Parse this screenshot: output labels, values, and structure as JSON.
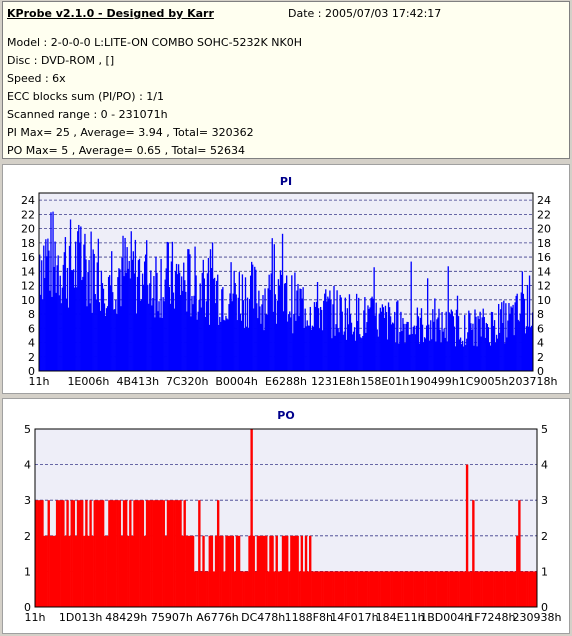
{
  "header": {
    "title": "KProbe v2.1.0 - Designed by Karr",
    "date": "Date : 2005/07/03 17:42:17",
    "lines": [
      "Model : 2-0-0-0 L:LITE-ON COMBO SOHC-5232K NK0H",
      "Disc : DVD-ROM ,  []",
      "Speed : 6x",
      "ECC blocks sum (PI/PO) : 1/1",
      "Scanned range : 0 - 231071h",
      "PI Max= 25 , Average= 3.94 , Total= 320362",
      "PO Max= 5 , Average= 0.65 , Total= 52634"
    ]
  },
  "colors": {
    "pi": "#0000ff",
    "po": "#ff0000",
    "title": "#00008b",
    "plot_bg": "#eeeef8",
    "grid": "#3a3a8a"
  },
  "chart_data": [
    {
      "type": "area",
      "title": "PI",
      "ylim": [
        0,
        25
      ],
      "y_ticks": [
        "0",
        "2",
        "4",
        "6",
        "8",
        "10",
        "12",
        "14",
        "16",
        "18",
        "20",
        "22",
        "24"
      ],
      "x_tick_labels": [
        "11h",
        "1E006h",
        "4B413h",
        "7C320h",
        "B0004h",
        "E6288h",
        "1231E8h",
        "158E01h",
        "190499h",
        "1C9005h",
        "203718h"
      ],
      "series": [
        {
          "envelope_x": [
            0,
            0.05,
            0.1,
            0.2,
            0.3,
            0.4,
            0.5,
            0.6,
            0.7,
            0.8,
            0.9,
            0.95,
            0.98,
            1.0
          ],
          "envelope_y": [
            20,
            18.5,
            17.5,
            16.5,
            15,
            13.5,
            12,
            10,
            8.5,
            7.5,
            7.5,
            8.5,
            10,
            12
          ],
          "peak_values": [
            24,
            24,
            23,
            22,
            21,
            20,
            19,
            18,
            16,
            15,
            15,
            14,
            13,
            12,
            11
          ]
        }
      ]
    },
    {
      "type": "bar",
      "title": "PO",
      "ylim": [
        0,
        5
      ],
      "y_ticks": [
        "0",
        "1",
        "2",
        "3",
        "4",
        "5"
      ],
      "x_tick_labels": [
        "11h",
        "1D013h",
        "48429h",
        "75907h",
        "A6776h",
        "DC478h",
        "1188F8h",
        "14F017h",
        "184E11h",
        "1BD004h",
        "1F7248h",
        "230938h"
      ],
      "series": [
        {
          "baseline_segments": [
            [
              0,
              0.3,
              2
            ],
            [
              0.3,
              0.55,
              1.5
            ],
            [
              0.55,
              1.0,
              1
            ]
          ],
          "peak_values": [
            5,
            4,
            4,
            4,
            3,
            3,
            3,
            3,
            3,
            2
          ]
        }
      ]
    }
  ]
}
